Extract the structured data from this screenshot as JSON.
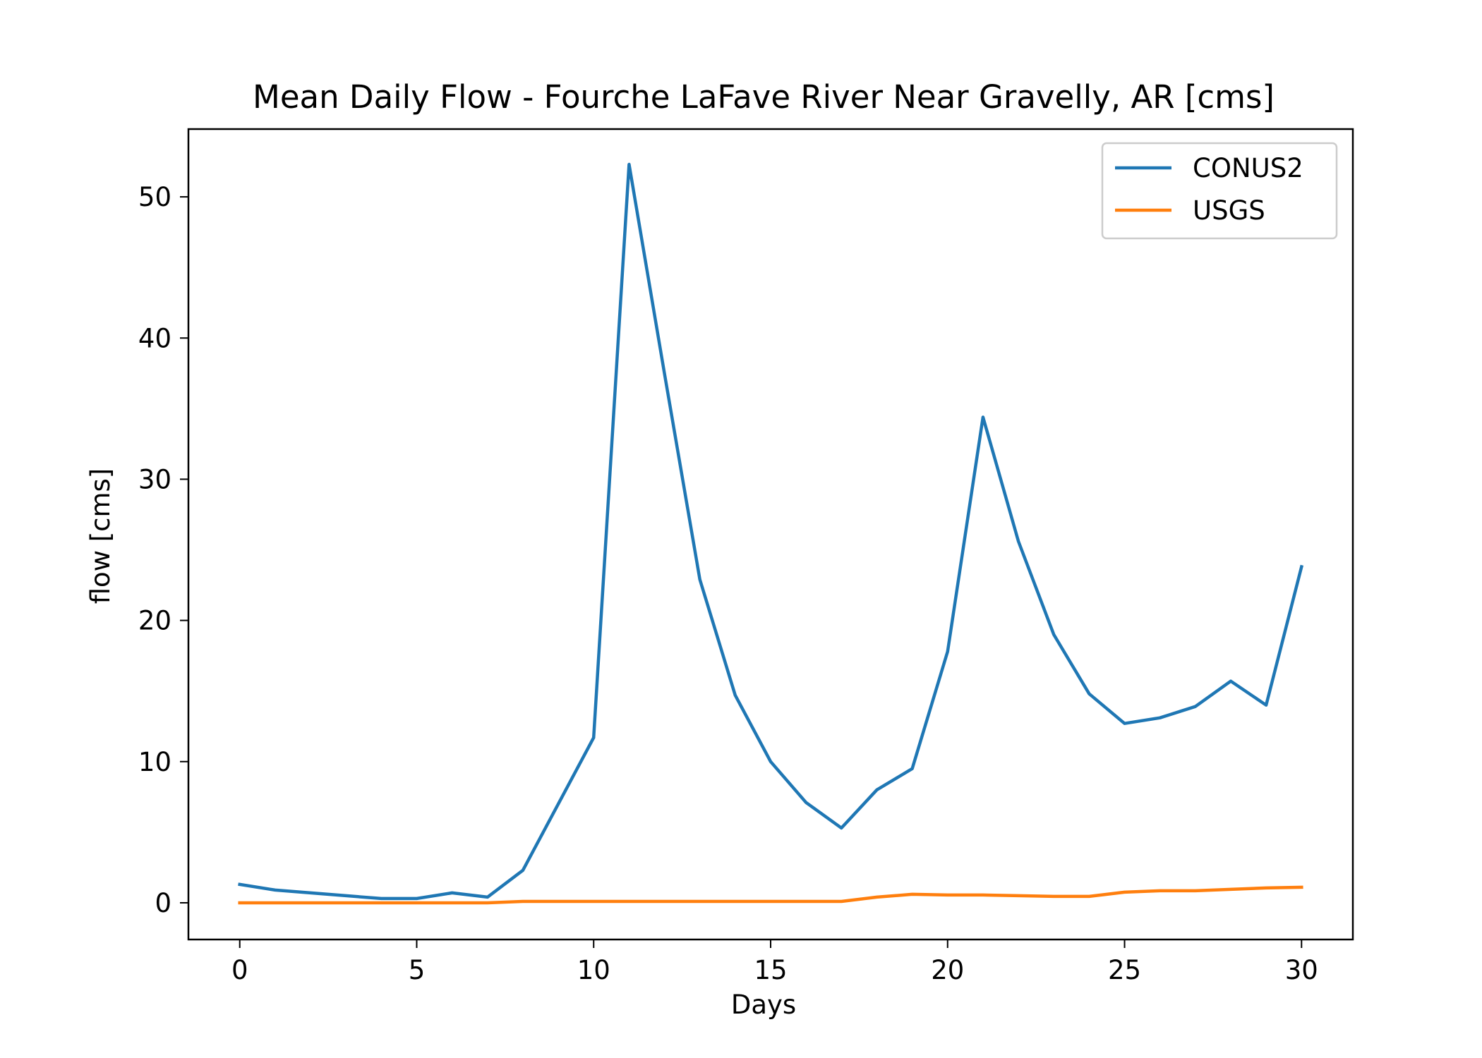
{
  "chart_data": {
    "type": "line",
    "title": "Mean Daily Flow - Fourche LaFave River Near Gravelly, AR [cms]",
    "xlabel": "Days",
    "ylabel": "flow [cms]",
    "xlim": [
      -1.45,
      31.45
    ],
    "ylim": [
      -2.6,
      54.8
    ],
    "xticks": [
      0,
      5,
      10,
      15,
      20,
      25,
      30
    ],
    "yticks": [
      0,
      10,
      20,
      30,
      40,
      50
    ],
    "grid": false,
    "legend_position": "top-right",
    "x": [
      0,
      1,
      2,
      3,
      4,
      5,
      6,
      7,
      8,
      9,
      10,
      11,
      12,
      13,
      14,
      15,
      16,
      17,
      18,
      19,
      20,
      21,
      22,
      23,
      24,
      25,
      26,
      27,
      28,
      29,
      30
    ],
    "series": [
      {
        "name": "CONUS2",
        "color": "#1f77b4",
        "values": [
          1.3,
          0.9,
          0.7,
          0.5,
          0.3,
          0.3,
          0.7,
          0.4,
          2.3,
          7.0,
          11.7,
          52.3,
          37.5,
          22.9,
          14.7,
          10.0,
          7.1,
          5.3,
          8.0,
          9.5,
          17.8,
          34.4,
          25.6,
          19.0,
          14.8,
          12.7,
          13.1,
          13.9,
          15.7,
          14.0,
          23.8
        ]
      },
      {
        "name": "USGS",
        "color": "#ff7f0e",
        "values": [
          0.0,
          0.0,
          0.0,
          0.0,
          0.0,
          0.0,
          0.0,
          0.0,
          0.1,
          0.1,
          0.1,
          0.1,
          0.1,
          0.1,
          0.1,
          0.1,
          0.1,
          0.1,
          0.4,
          0.6,
          0.55,
          0.55,
          0.5,
          0.45,
          0.45,
          0.75,
          0.85,
          0.85,
          0.95,
          1.05,
          1.1
        ]
      }
    ]
  }
}
